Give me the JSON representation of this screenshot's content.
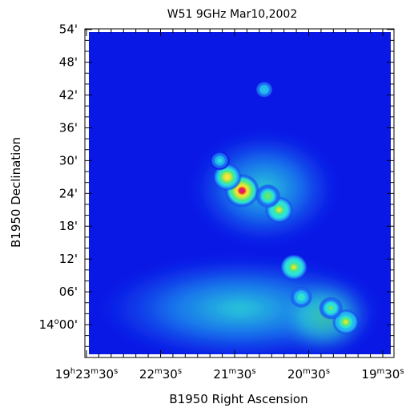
{
  "chart_data": {
    "type": "heatmap",
    "title": "W51   9GHz   Mar10,2002",
    "xlabel": "B1950 Right Ascension",
    "ylabel": "B1950 Declination",
    "colormap": [
      "#0a18e6",
      "#1a6cf0",
      "#22b8f0",
      "#2ee3d4",
      "#4ae88a",
      "#b9e640",
      "#f5e63a",
      "#f5a030",
      "#e8202a",
      "#e000e0"
    ],
    "background_color": "#0a18e6",
    "x_ticks": [
      {
        "h": "19",
        "m": "23",
        "s": "30"
      },
      {
        "h": "",
        "m": "22",
        "s": "30"
      },
      {
        "h": "",
        "m": "21",
        "s": "30"
      },
      {
        "h": "",
        "m": "20",
        "s": "30"
      },
      {
        "h": "",
        "m": "19",
        "s": "30"
      }
    ],
    "x_tick_units": {
      "h": "h",
      "m": "m",
      "s": "s"
    },
    "y_ticks": [
      {
        "label": "54'",
        "arcmin": 54
      },
      {
        "label": "48'",
        "arcmin": 48
      },
      {
        "label": "42'",
        "arcmin": 42
      },
      {
        "label": "36'",
        "arcmin": 36
      },
      {
        "label": "30'",
        "arcmin": 30
      },
      {
        "label": "24'",
        "arcmin": 24
      },
      {
        "label": "18'",
        "arcmin": 18
      },
      {
        "label": "12'",
        "arcmin": 12
      },
      {
        "label": "06'",
        "arcmin": 6
      },
      {
        "label": "00'",
        "deg": "14",
        "arcmin": 0
      }
    ],
    "deg_symbol": "o",
    "sources": [
      {
        "ra_min": 21.4,
        "dec_arcmin": 24.5,
        "intensity": 1.0
      },
      {
        "ra_min": 21.6,
        "dec_arcmin": 27.0,
        "intensity": 0.72
      },
      {
        "ra_min": 20.9,
        "dec_arcmin": 21.0,
        "intensity": 0.68
      },
      {
        "ra_min": 21.05,
        "dec_arcmin": 23.5,
        "intensity": 0.55
      },
      {
        "ra_min": 21.7,
        "dec_arcmin": 30.0,
        "intensity": 0.35
      },
      {
        "ra_min": 20.7,
        "dec_arcmin": 10.5,
        "intensity": 0.66
      },
      {
        "ra_min": 20.0,
        "dec_arcmin": 0.5,
        "intensity": 0.62
      },
      {
        "ra_min": 20.2,
        "dec_arcmin": 3.0,
        "intensity": 0.5
      },
      {
        "ra_min": 20.6,
        "dec_arcmin": 5.0,
        "intensity": 0.42
      },
      {
        "ra_min": 21.1,
        "dec_arcmin": 43.0,
        "intensity": 0.3
      }
    ]
  }
}
